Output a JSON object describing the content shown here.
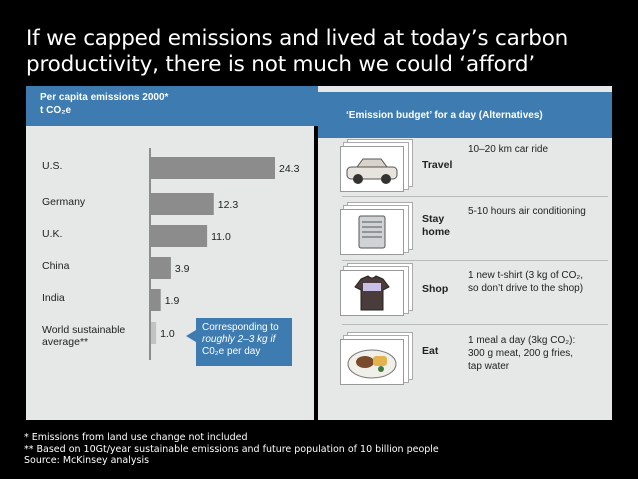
{
  "slide": {
    "title_line1": "If we capped emissions and lived at today’s carbon",
    "title_line2": "productivity, there is not much we could ‘afford’"
  },
  "left_panel": {
    "header_line1": "Per capita emissions 2000*",
    "header_line2": "t CO₂e",
    "callout_line1": "Corresponding to",
    "callout_line2": "roughly 2–3 kg if",
    "callout_line3": "C0₂e per day"
  },
  "chart_data": {
    "type": "bar",
    "orientation": "horizontal",
    "title": "Per capita emissions 2000*",
    "unit": "t CO₂e",
    "categories": [
      "U.S.",
      "Germany",
      "U.K.",
      "China",
      "India",
      "World sustainable average**"
    ],
    "category_lines": [
      [
        "U.S."
      ],
      [
        "Germany"
      ],
      [
        "U.K."
      ],
      [
        "China"
      ],
      [
        "India"
      ],
      [
        "World sustainable",
        "average**"
      ]
    ],
    "values": [
      24.3,
      12.3,
      11.0,
      3.9,
      1.9,
      1.0
    ],
    "value_labels": [
      "24.3",
      "12.3",
      "11.0",
      "3.9",
      "1.9",
      "1.0"
    ],
    "bar_color": "#8c8c8c",
    "last_bar_color": "#c2c2c2",
    "xlim": [
      0,
      24.3
    ]
  },
  "right_panel": {
    "header": "‘Emission budget’ for a day (Alternatives)",
    "alternatives": [
      {
        "category": "Travel",
        "category_line2": "",
        "icon": "car-icon",
        "desc_lines": [
          "10–20 km car ride",
          "",
          ""
        ]
      },
      {
        "category": "Stay",
        "category_line2": "home",
        "icon": "air-conditioner-icon",
        "desc_lines": [
          "5-10 hours air conditioning",
          "",
          ""
        ]
      },
      {
        "category": "Shop",
        "category_line2": "",
        "icon": "tshirt-icon",
        "desc_lines": [
          "1 new t-shirt (3 kg of CO₂,",
          "so don’t drive to the shop)",
          ""
        ]
      },
      {
        "category": "Eat",
        "category_line2": "",
        "icon": "meal-plate-icon",
        "desc_lines": [
          "1 meal a day (3kg CO₂):",
          "300 g meat, 200 g fries,",
          "tap water"
        ]
      }
    ]
  },
  "footnotes": {
    "line1": "*   Emissions from land use change not included",
    "line2": "** Based on 10Gt/year sustainable emissions and future population of 10 billion people",
    "line3": "Source:  McKinsey analysis"
  }
}
